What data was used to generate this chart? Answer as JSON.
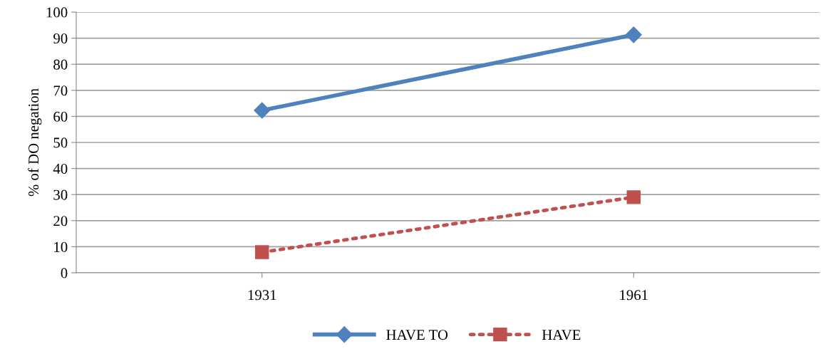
{
  "chart_data": {
    "type": "line",
    "ylabel": "% of DO negation",
    "categories": [
      "1931",
      "1961"
    ],
    "series": [
      {
        "name": "HAVE TO",
        "color": "#4f81bd",
        "values": [
          62.3,
          91.3
        ],
        "marker": "diamond",
        "line_style": "solid"
      },
      {
        "name": "HAVE",
        "color": "#c0504d",
        "values": [
          7.9,
          29.0
        ],
        "marker": "square",
        "line_style": "dotted"
      }
    ],
    "ylim": [
      0,
      100
    ],
    "yticks": [
      0,
      10,
      20,
      30,
      40,
      50,
      60,
      70,
      80,
      90,
      100
    ],
    "grid": "y",
    "legend": "bottom"
  }
}
